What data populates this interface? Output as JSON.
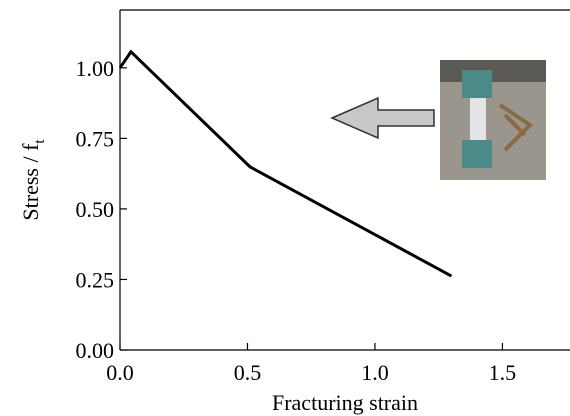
{
  "chart_data": {
    "type": "line",
    "x_label": "Fracturing strain",
    "y_label": "Stress / f",
    "y_label_subscript": "t",
    "x": [
      0,
      0.043,
      0.51,
      1.3
    ],
    "values": [
      1.0,
      1.057,
      0.649,
      0.262
    ],
    "color": "#000000",
    "xlim": [
      0,
      1.765
    ],
    "xticks": [
      {
        "value": 0,
        "label": "0.0"
      },
      0.5,
      {
        "value": 1,
        "label": "1.0"
      },
      1.5
    ],
    "ylim": [
      0,
      1.205
    ],
    "yticks": [
      {
        "value": 0,
        "label": "0.00"
      },
      0.25,
      {
        "value": 0.5,
        "label": "0.50"
      },
      0.75,
      {
        "value": 1,
        "label": "1.00"
      }
    ]
  }
}
